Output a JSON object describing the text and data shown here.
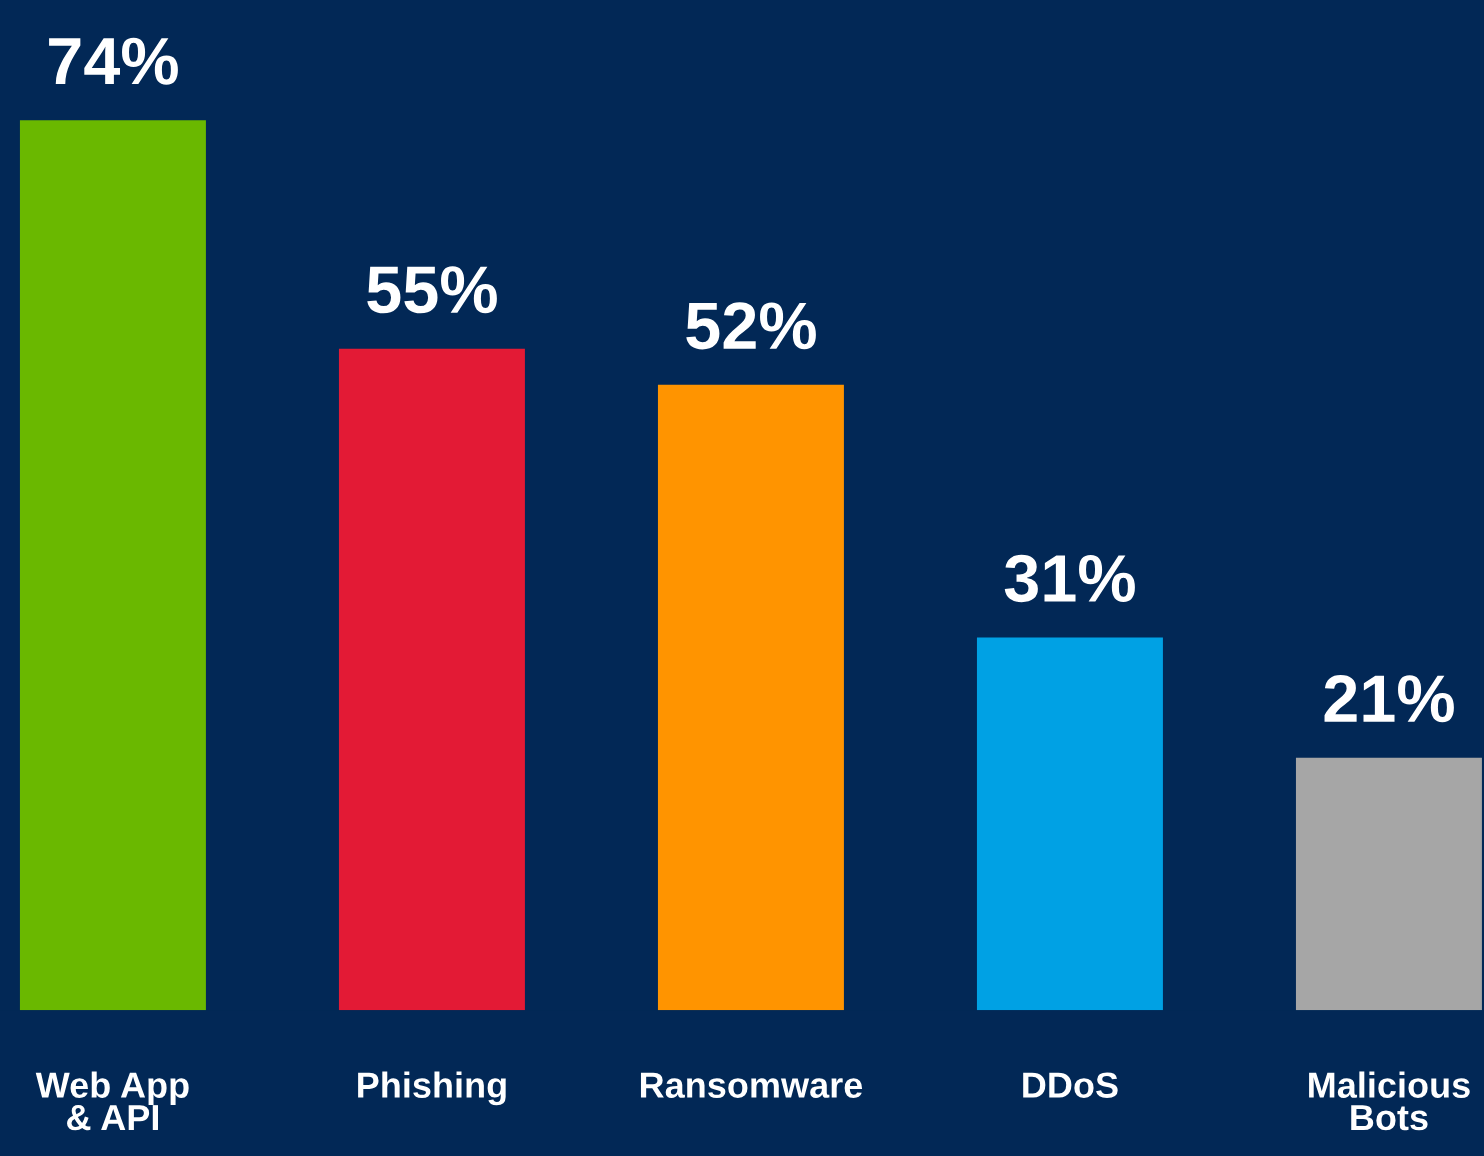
{
  "chart_data": {
    "type": "bar",
    "categories": [
      "Web App\n& API",
      "Phishing",
      "Ransomware",
      "DDoS",
      "Malicious\nBots"
    ],
    "values": [
      74,
      55,
      52,
      31,
      21
    ],
    "colors": [
      "#6ab800",
      "#e31a35",
      "#ff9400",
      "#00a1e4",
      "#a6a6a6"
    ],
    "value_labels": [
      "74%",
      "55%",
      "52%",
      "31%",
      "21%"
    ],
    "grid": false,
    "legend": false
  }
}
